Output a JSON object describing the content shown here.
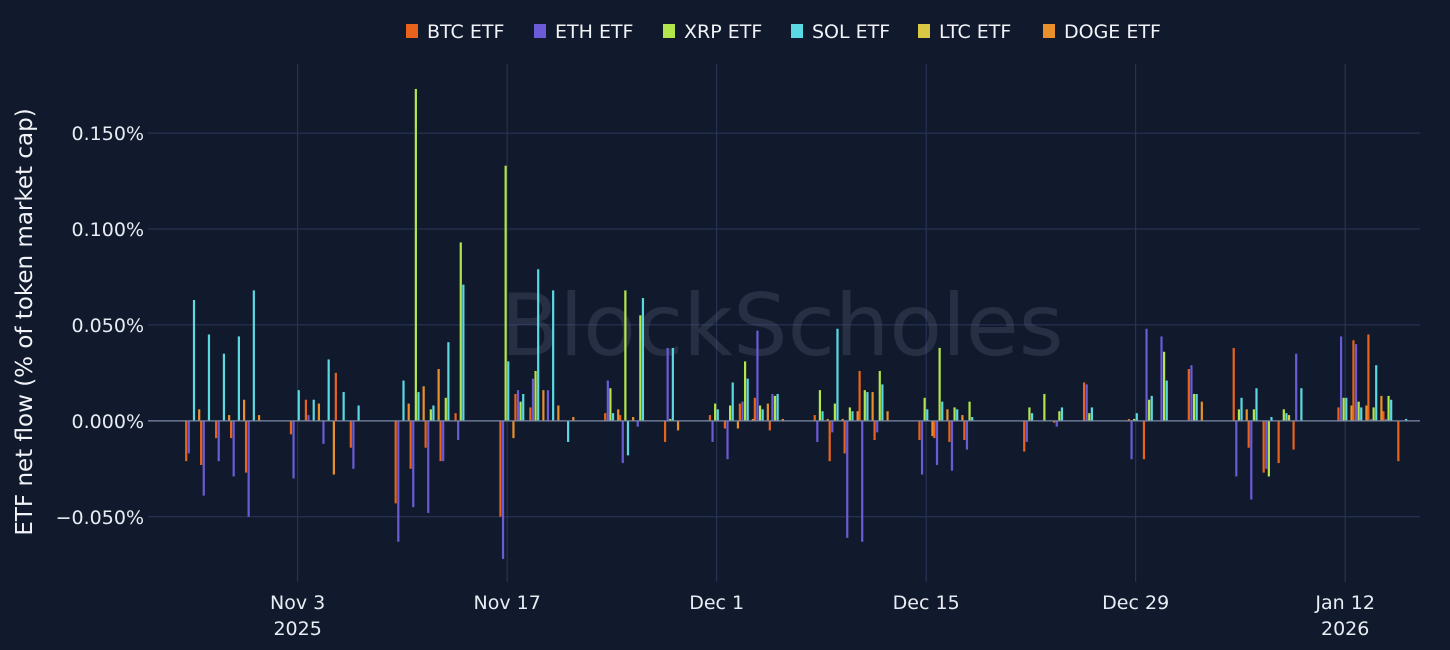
{
  "watermark": "BlockScholes",
  "chart_data": {
    "type": "bar",
    "ylabel": "ETF net flow (% of token market cap)",
    "ylim": [
      -0.084,
      0.186
    ],
    "y_ticks": [
      -0.05,
      0,
      0.05,
      0.1,
      0.15
    ],
    "y_tick_labels": [
      "−0.050%",
      "0.000%",
      "0.050%",
      "0.100%",
      "0.150%"
    ],
    "x_range": [
      "2025-10-24",
      "2026-01-17"
    ],
    "x_ticks": [
      {
        "date": "2025-11-03",
        "label": "Nov 3",
        "sublabel": "2025"
      },
      {
        "date": "2025-11-17",
        "label": "Nov 17",
        "sublabel": ""
      },
      {
        "date": "2025-12-01",
        "label": "Dec 1",
        "sublabel": ""
      },
      {
        "date": "2025-12-15",
        "label": "Dec 15",
        "sublabel": ""
      },
      {
        "date": "2025-12-29",
        "label": "Dec 29",
        "sublabel": ""
      },
      {
        "date": "2026-01-12",
        "label": "Jan 12",
        "sublabel": "2026"
      }
    ],
    "legend_position": "top",
    "dates": [
      "2025-10-27",
      "2025-10-28",
      "2025-10-29",
      "2025-10-30",
      "2025-10-31",
      "2025-11-03",
      "2025-11-04",
      "2025-11-05",
      "2025-11-06",
      "2025-11-07",
      "2025-11-10",
      "2025-11-11",
      "2025-11-12",
      "2025-11-13",
      "2025-11-14",
      "2025-11-17",
      "2025-11-18",
      "2025-11-19",
      "2025-11-20",
      "2025-11-21",
      "2025-11-24",
      "2025-11-25",
      "2025-11-26",
      "2025-11-28",
      "2025-12-01",
      "2025-12-02",
      "2025-12-03",
      "2025-12-04",
      "2025-12-05",
      "2025-12-08",
      "2025-12-09",
      "2025-12-10",
      "2025-12-11",
      "2025-12-12",
      "2025-12-15",
      "2025-12-16",
      "2025-12-17",
      "2025-12-18",
      "2025-12-19",
      "2025-12-22",
      "2025-12-23",
      "2025-12-24",
      "2025-12-26",
      "2025-12-29",
      "2025-12-30",
      "2025-12-31",
      "2026-01-02",
      "2026-01-05",
      "2026-01-06",
      "2026-01-07",
      "2026-01-08",
      "2026-01-09",
      "2026-01-12",
      "2026-01-13",
      "2026-01-14",
      "2026-01-15",
      "2026-01-16"
    ],
    "series": [
      {
        "name": "BTC ETF",
        "color": "#e8641c",
        "values": [
          -0.021,
          -0.023,
          -0.009,
          -0.009,
          -0.027,
          -0.007,
          0.011,
          0,
          0.025,
          -0.014,
          -0.043,
          -0.025,
          -0.014,
          -0.021,
          0.004,
          -0.05,
          0.014,
          0.007,
          0,
          0,
          0.004,
          0.003,
          0,
          -0.011,
          0.003,
          -0.004,
          0.009,
          0.012,
          -0.005,
          0.003,
          -0.021,
          -0.017,
          0.026,
          -0.01,
          -0.01,
          -0.009,
          -0.011,
          -0.01,
          0,
          -0.016,
          0,
          -0.001,
          0.02,
          0.001,
          -0.02,
          0,
          0.027,
          0.038,
          -0.014,
          -0.027,
          -0.022,
          -0.015,
          0.007,
          0.042,
          0.045,
          0.005,
          -0.021
        ]
      },
      {
        "name": "ETH ETF",
        "color": "#6b5bd6",
        "values": [
          -0.017,
          -0.039,
          -0.021,
          -0.029,
          -0.05,
          -0.03,
          0.003,
          -0.012,
          0,
          -0.025,
          -0.063,
          -0.045,
          -0.048,
          -0.021,
          -0.01,
          -0.072,
          0.016,
          0.022,
          0.016,
          0,
          0.021,
          -0.022,
          -0.003,
          0.038,
          -0.011,
          -0.02,
          0.01,
          0.047,
          0.014,
          -0.011,
          -0.006,
          -0.061,
          -0.063,
          -0.006,
          -0.028,
          -0.023,
          -0.026,
          -0.015,
          0,
          -0.011,
          0,
          -0.003,
          0.019,
          -0.02,
          0.048,
          0.044,
          0.029,
          -0.029,
          -0.041,
          -0.025,
          0,
          0.035,
          0.044,
          0.04,
          0.001,
          0.001,
          0
        ]
      },
      {
        "name": "XRP ETF",
        "color": "#b3e64b",
        "values": [
          0,
          0,
          0,
          0,
          0,
          0,
          0,
          0,
          0,
          0,
          0,
          0.173,
          0.006,
          0.012,
          0.093,
          0.133,
          0.01,
          0.026,
          0,
          0,
          0.017,
          0.068,
          0.055,
          0.001,
          0.009,
          0.008,
          0.031,
          0.008,
          0.013,
          0.016,
          0.009,
          0.007,
          0.016,
          0.026,
          0.012,
          0.038,
          0.007,
          0.01,
          0,
          0.007,
          0.014,
          0.005,
          0.004,
          0.001,
          0.011,
          0.036,
          0.014,
          0.006,
          0.006,
          -0.029,
          0.006,
          0,
          0.012,
          0.01,
          0.007,
          0.013,
          0
        ]
      },
      {
        "name": "SOL ETF",
        "color": "#5ad9e2",
        "values": [
          0.063,
          0.045,
          0.035,
          0.044,
          0.068,
          0.016,
          0.011,
          0.032,
          0.015,
          0.008,
          0.021,
          0.015,
          0.008,
          0.041,
          0.071,
          0.031,
          0.014,
          0.079,
          0.068,
          -0.011,
          0.004,
          -0.018,
          0.064,
          0.038,
          0.006,
          0.02,
          0.022,
          0.006,
          0.014,
          0.005,
          0.048,
          0.005,
          0.015,
          0.019,
          0.006,
          0.01,
          0.006,
          0.002,
          0,
          0.004,
          0,
          0.007,
          0.007,
          0.004,
          0.013,
          0.021,
          0.014,
          0.012,
          0.017,
          0.002,
          0.004,
          0.017,
          0.012,
          0.007,
          0.029,
          0.011,
          0.001
        ]
      },
      {
        "name": "LTC ETF",
        "color": "#d9c843",
        "values": [
          0,
          0,
          0,
          0,
          0,
          0,
          0,
          0,
          0,
          0,
          0,
          0,
          0,
          0,
          0,
          0,
          0,
          0,
          0,
          0,
          0,
          0,
          0,
          0,
          0,
          0,
          0,
          0,
          0,
          0,
          0,
          0,
          0,
          0,
          0,
          0,
          0,
          0,
          0,
          0,
          0,
          0,
          0,
          0,
          0,
          0,
          0,
          0,
          0,
          0,
          0.003,
          0,
          0,
          0,
          0,
          0,
          0
        ]
      },
      {
        "name": "DOGE ETF",
        "color": "#e8902c",
        "values": [
          0.006,
          0,
          0.003,
          0.011,
          0.003,
          0,
          0.009,
          -0.028,
          0,
          0,
          0.009,
          0.018,
          0.027,
          0,
          0,
          -0.009,
          0,
          0.016,
          0.008,
          0.002,
          0.006,
          0.002,
          0,
          -0.005,
          0,
          -0.004,
          0.001,
          0.009,
          0.001,
          0.001,
          0.001,
          0.005,
          0.015,
          0.005,
          -0.008,
          0.006,
          0.003,
          0,
          0,
          0,
          0,
          0,
          0,
          0,
          0,
          0,
          0.01,
          0.006,
          0,
          0,
          0,
          0,
          0.008,
          0.008,
          0.013,
          0,
          0
        ]
      }
    ]
  }
}
